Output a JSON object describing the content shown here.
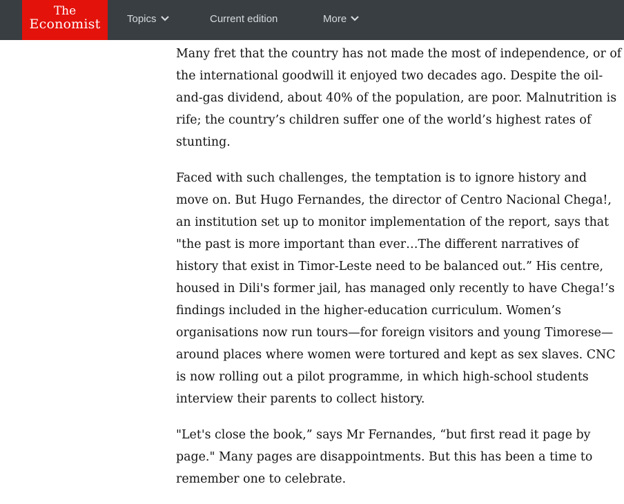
{
  "header": {
    "logo": {
      "line1": "The",
      "line2": "Economist",
      "color": "#e3120b"
    },
    "nav": [
      {
        "label": "Topics",
        "icon": "chevron-down-icon"
      },
      {
        "label": "Current edition"
      },
      {
        "label": "More",
        "icon": "chevron-down-icon"
      }
    ],
    "background": "#383e42"
  },
  "article": {
    "paragraphs": [
      "Many fret that the country has not made the most of independence, or of the international goodwill it enjoyed two decades ago. Despite the oil-and-gas dividend, about 40% of the population, are poor. Malnutrition is rife; the country’s children suffer one of the world’s highest rates of stunting.",
      "Faced with such challenges, the temptation is to ignore history and move on. But Hugo Fernandes, the director of Centro Nacional Chega!, an institution set up to monitor implementation of the report, says that \"the past is more important than ever…The different narratives of history that exist in Timor-Leste need to be balanced out.” His centre, housed in Dili's former jail, has managed only recently to have Chega!’s findings included in the higher-education curriculum. Women’s organisations now run tours—for foreign visitors and young Timorese—around places where women were tortured and kept as sex slaves. CNC is now rolling out a pilot programme, in which high-school students interview their parents to collect history.",
      "\"Let's close the book,” says Mr Fernandes, “but first read it page by page.\" Many pages are disappointments. But this has been a time to remember one to celebrate."
    ]
  }
}
